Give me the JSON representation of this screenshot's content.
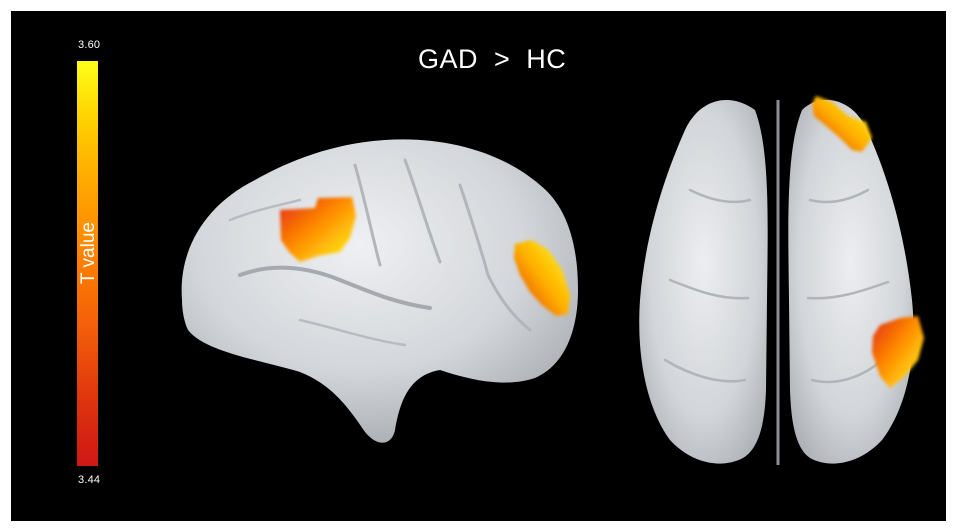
{
  "title": "GAD  >  HC",
  "colorbar": {
    "label": "T value",
    "max": "3.60",
    "min": "3.44",
    "colors": [
      "#cf1715",
      "#f35e0a",
      "#ff8200",
      "#ffd200",
      "#ffff1a"
    ]
  },
  "views": [
    {
      "name": "lateral-view",
      "activations": 2
    },
    {
      "name": "dorsal-view",
      "activations": 2
    }
  ],
  "colors": {
    "background": "#000000",
    "surface": "#c9ccd1",
    "surface_highlight": "#eef0f3",
    "text": "#ffffff"
  }
}
